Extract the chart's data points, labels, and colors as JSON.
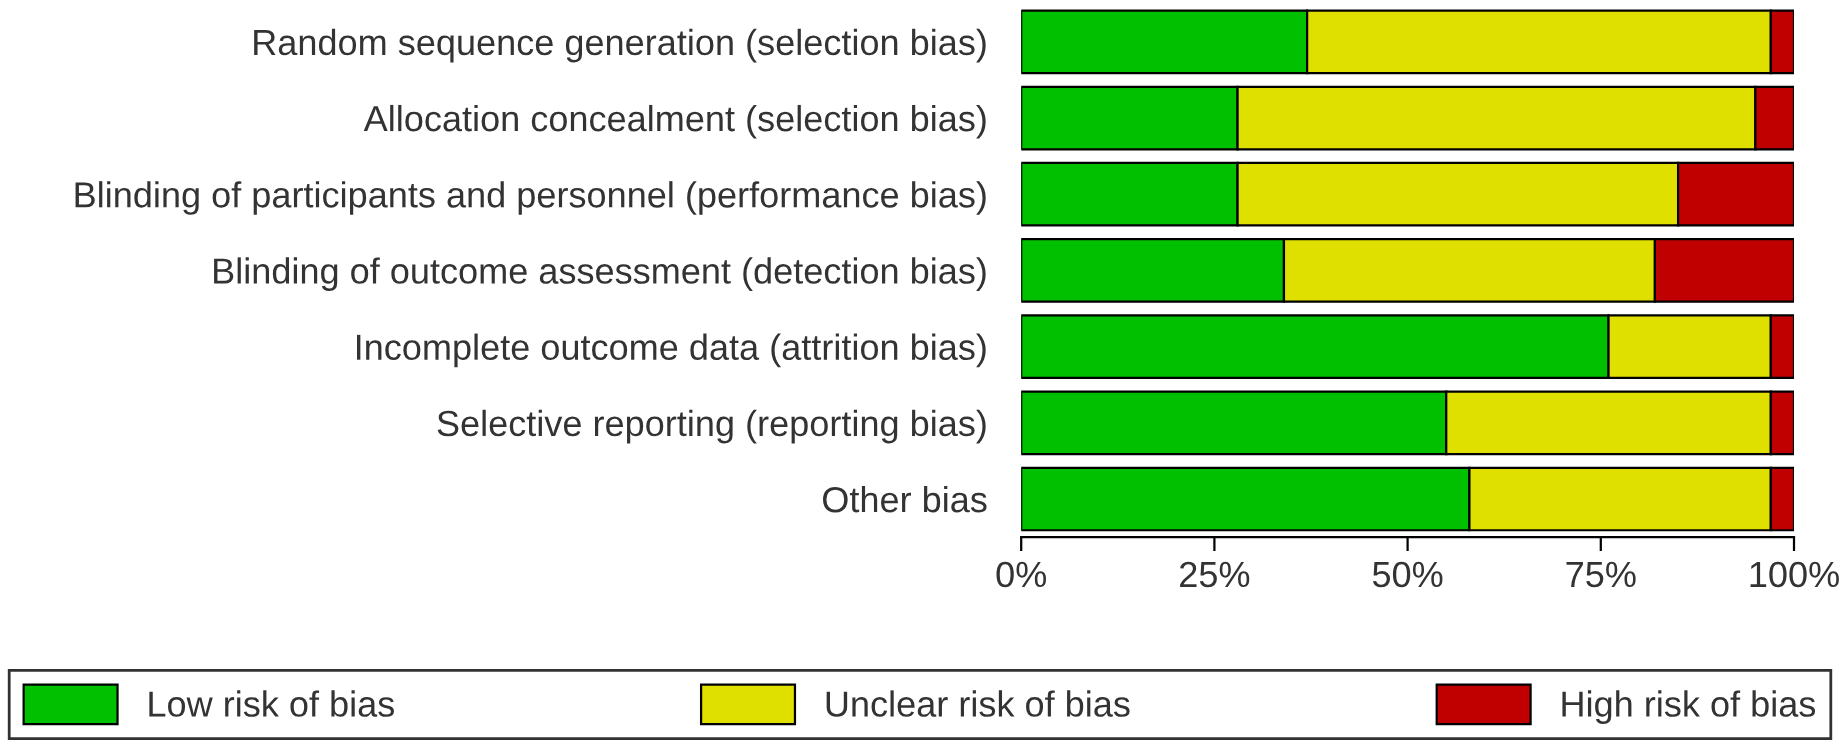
{
  "chart_data": {
    "type": "bar",
    "orientation": "horizontal",
    "stacked": true,
    "categories": [
      "Random sequence generation (selection bias)",
      "Allocation concealment (selection bias)",
      "Blinding of participants and personnel (performance bias)",
      "Blinding of outcome assessment (detection bias)",
      "Incomplete outcome data (attrition bias)",
      "Selective reporting (reporting bias)",
      "Other bias"
    ],
    "series": [
      {
        "name": "Low risk of bias",
        "color": "#00c000",
        "values": [
          37,
          28,
          28,
          34,
          76,
          55,
          58
        ]
      },
      {
        "name": "Unclear risk of bias",
        "color": "#e0e000",
        "values": [
          60,
          67,
          57,
          48,
          21,
          42,
          39
        ]
      },
      {
        "name": "High risk of bias",
        "color": "#c00000",
        "values": [
          3,
          5,
          15,
          18,
          3,
          3,
          3
        ]
      }
    ],
    "xlim": [
      0,
      100
    ],
    "xticks": [
      {
        "value": 0,
        "label": "0%"
      },
      {
        "value": 25,
        "label": "25%"
      },
      {
        "value": 50,
        "label": "50%"
      },
      {
        "value": 75,
        "label": "75%"
      },
      {
        "value": 100,
        "label": "100%"
      }
    ],
    "grid": false,
    "legend": "bottom"
  }
}
